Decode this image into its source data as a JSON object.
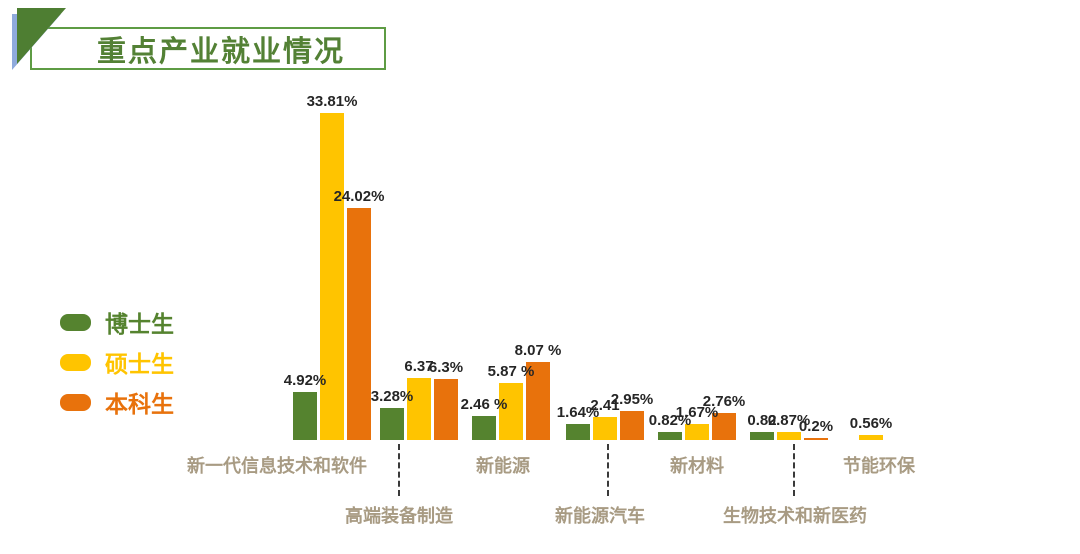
{
  "page": {
    "background": "#ffffff"
  },
  "header": {
    "title": "重点产业就业情况",
    "title_color": "#538135",
    "box_border_color": "#5E9C44",
    "triangle_green": "#4E7E32",
    "triangle_blue": "#8FAADC"
  },
  "legend": {
    "items": [
      {
        "label": "博士生",
        "color": "#55832F"
      },
      {
        "label": "硕士生",
        "color": "#FFC400"
      },
      {
        "label": "本科生",
        "color": "#E8720C"
      }
    ]
  },
  "chart_data": {
    "type": "bar",
    "title": "重点产业就业情况",
    "categories": [
      "新一代信息技术和软件",
      "高端装备制造",
      "新能源",
      "新能源汽车",
      "新材料",
      "生物技术和新医药",
      "节能环保"
    ],
    "series": [
      {
        "name": "博士生",
        "color": "#55832F",
        "values": [
          4.92,
          3.28,
          2.46,
          1.64,
          0.82,
          0.82,
          null
        ],
        "labels": [
          "4.92%",
          "3.28%",
          "2.46 %",
          "1.64%",
          "0.82%",
          "0.82",
          null
        ]
      },
      {
        "name": "硕士生",
        "color": "#FFC400",
        "values": [
          33.81,
          6.37,
          5.87,
          2.41,
          1.67,
          0.87,
          0.56
        ],
        "labels": [
          "33.81%",
          "6.37",
          "5.87 %",
          "2.41",
          "1.67%",
          "0.87%",
          "0.56%"
        ]
      },
      {
        "name": "本科生",
        "color": "#E8720C",
        "values": [
          24.02,
          6.3,
          8.07,
          2.95,
          2.76,
          0.2,
          null
        ],
        "labels": [
          "24.02%",
          "6.3%",
          "8.07 %",
          "2.95%",
          "2.76%",
          "0.2%",
          null
        ]
      }
    ],
    "xlabel": "",
    "ylabel": "",
    "unit": "%",
    "grid": false,
    "legend_position": "middle-left",
    "value_label_color": "#262626",
    "axis_label_color": "#A89B83",
    "ylim": [
      0,
      35
    ]
  }
}
